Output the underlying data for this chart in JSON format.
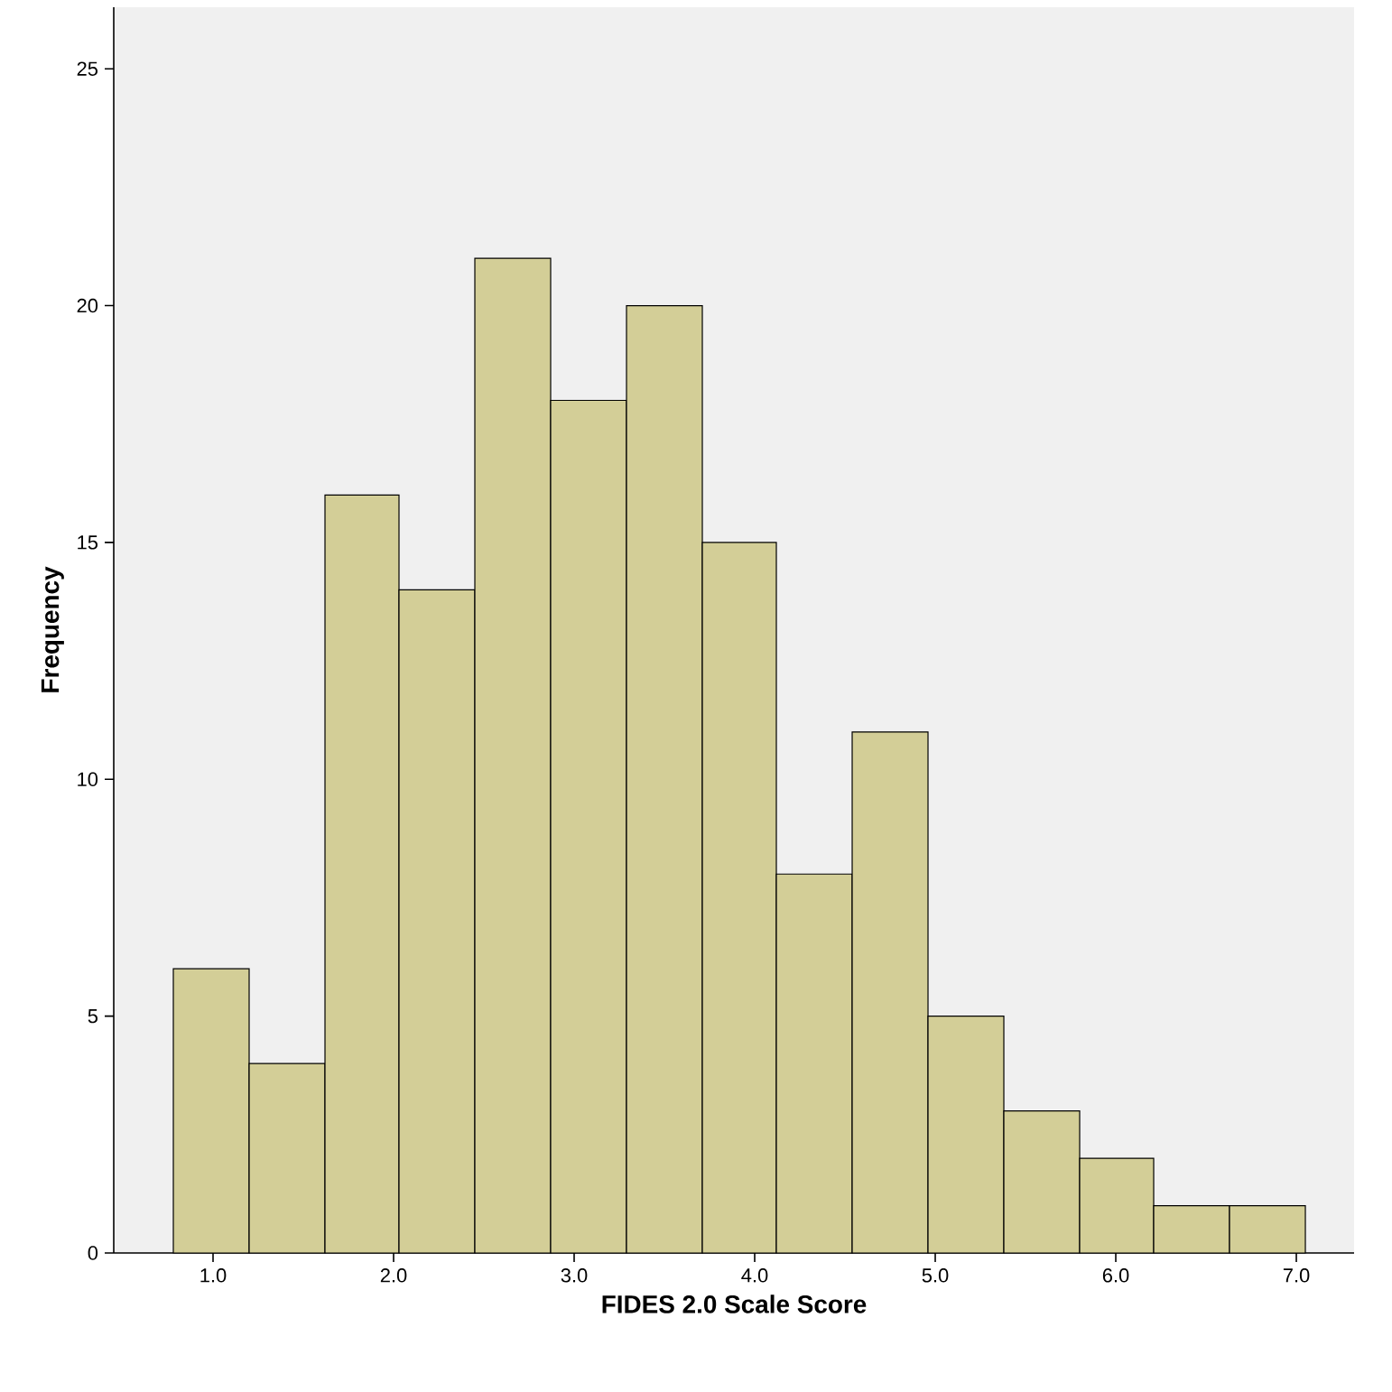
{
  "chart_data": {
    "type": "histogram",
    "xlabel": "FIDES 2.0 Scale Score",
    "ylabel": "Frequency",
    "bins": [
      0.78,
      1.2,
      1.62,
      2.03,
      2.45,
      2.87,
      3.29,
      3.71,
      4.12,
      4.54,
      4.96,
      5.38,
      5.8,
      6.21,
      6.63,
      7.05
    ],
    "values": [
      6,
      4,
      16,
      14,
      21,
      18,
      20,
      15,
      8,
      11,
      5,
      3,
      2,
      1,
      1
    ],
    "color": "#d3ce97",
    "xlim": [
      0.45,
      7.32
    ],
    "ylim": [
      0,
      26.3
    ],
    "xticks": [
      {
        "value": 1,
        "label": "1.0"
      },
      {
        "value": 2,
        "label": "2.0"
      },
      {
        "value": 3,
        "label": "3.0"
      },
      {
        "value": 4,
        "label": "4.0"
      },
      {
        "value": 5,
        "label": "5.0"
      },
      {
        "value": 6,
        "label": "6.0"
      },
      {
        "value": 7,
        "label": "7.0"
      }
    ],
    "yticks": [
      0,
      5,
      10,
      15,
      20,
      25
    ],
    "grid": false
  }
}
